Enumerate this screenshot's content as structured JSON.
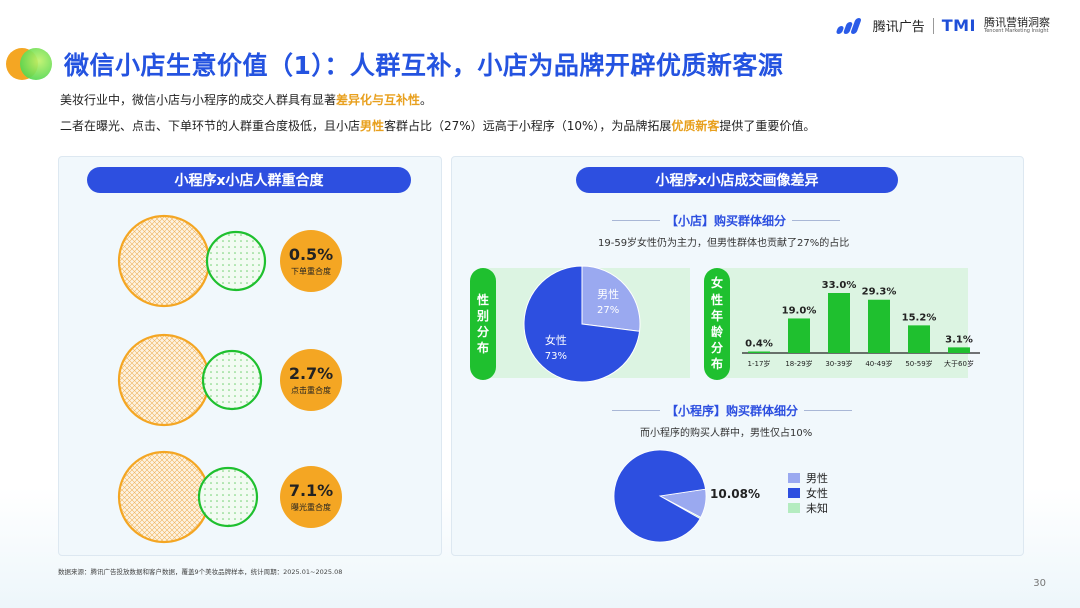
{
  "header": {
    "brand_name": "腾讯广告",
    "tmi_logo": "TMI",
    "tmi_cn": "腾讯营销洞察",
    "tmi_en": "Tencent Marketing Insight"
  },
  "title": "微信小店生意价值（1）：人群互补，小店为品牌开辟优质新客源",
  "subtitle1": {
    "pre": "美妆行业中，微信小店与小程序的成交人群具有显著",
    "hl": "差异化与互补性",
    "post": "。"
  },
  "subtitle2": {
    "p1": "二者在曝光、点击、下单环节的人群重合度极低，且小店",
    "hl1": "男性",
    "p2": "客群占比（27%）远高于小程序（10%），为品牌拓展",
    "hl2": "优质新客",
    "p3": "提供了重要价值。"
  },
  "left_panel": {
    "heading": "小程序x小店人群重合度",
    "rows": [
      {
        "pct": "0.5%",
        "label": "下单重合度"
      },
      {
        "pct": "2.7%",
        "label": "点击重合度"
      },
      {
        "pct": "7.1%",
        "label": "曝光重合度"
      }
    ]
  },
  "right_panel": {
    "heading": "小程序x小店成交画像差异",
    "store_title": "【小店】购买群体细分",
    "store_desc": "19-59岁女性仍为主力，但男性群体也贡献了27%的占比",
    "gender_label": [
      "性",
      "别",
      "分",
      "布"
    ],
    "age_label": [
      "女",
      "性",
      "年",
      "龄",
      "分",
      "布"
    ],
    "mp_title": "【小程序】购买群体细分",
    "mp_desc": "而小程序的购买人群中，男性仅占10%"
  },
  "colors": {
    "blue": "#2d4fe0",
    "light_blue": "#9aa9f0",
    "green": "#1fc02f",
    "light_green": "#b4ecc0",
    "orange": "#f4a623"
  },
  "chart_data": [
    {
      "type": "pie",
      "labels": [
        "男性",
        "女性"
      ],
      "values": [
        27,
        73
      ],
      "data_labels": [
        {
          "name": "男性",
          "pct": "27%"
        },
        {
          "name": "女性",
          "pct": "73%"
        }
      ]
    },
    {
      "type": "bar",
      "categories": [
        "1-17岁",
        "18-29岁",
        "30-39岁",
        "40-49岁",
        "50-59岁",
        "大于60岁"
      ],
      "values": [
        0.4,
        19.0,
        33.0,
        29.3,
        15.2,
        3.1
      ],
      "value_labels": [
        "0.4%",
        "19.0%",
        "33.0%",
        "29.3%",
        "15.2%",
        "3.1%"
      ]
    },
    {
      "type": "pie",
      "labels": [
        "男性",
        "女性",
        "未知"
      ],
      "values": [
        10.08,
        89.42,
        0.5
      ],
      "data_label": "10.08%",
      "legend": [
        "男性",
        "女性",
        "未知"
      ]
    }
  ],
  "footer": {
    "source": "数据来源：腾讯广告投放数据和客户数据，覆盖9个美妆品牌样本，统计周期：2025.01~2025.08",
    "page": "30"
  }
}
